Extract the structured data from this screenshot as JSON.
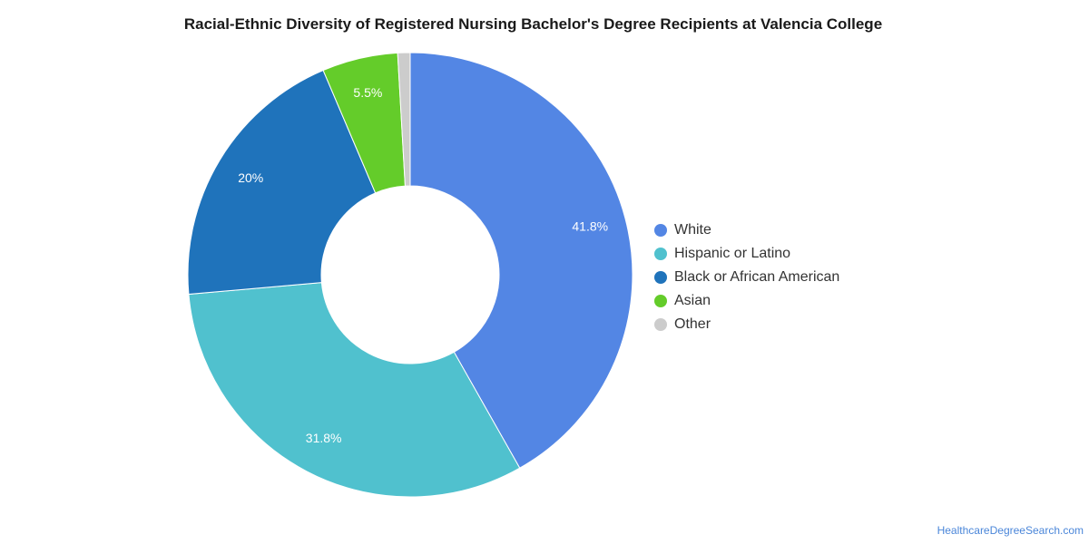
{
  "chart_data": {
    "type": "pie",
    "variant": "donut",
    "title": "Racial-Ethnic Diversity of Registered Nursing Bachelor's Degree Recipients at Valencia College",
    "legend_position": "right",
    "slices": [
      {
        "name": "White",
        "value": 41.8,
        "label": "41.8%",
        "color": "#5386e4"
      },
      {
        "name": "Hispanic or Latino",
        "value": 31.8,
        "label": "31.8%",
        "color": "#50c1ce"
      },
      {
        "name": "Black or African American",
        "value": 20.0,
        "label": "20%",
        "color": "#1f73bb"
      },
      {
        "name": "Asian",
        "value": 5.5,
        "label": "5.5%",
        "color": "#64cc2a"
      },
      {
        "name": "Other",
        "value": 0.9,
        "label": "",
        "color": "#cccccc"
      }
    ]
  },
  "source_credit": "HealthcareDegreeSearch.com"
}
